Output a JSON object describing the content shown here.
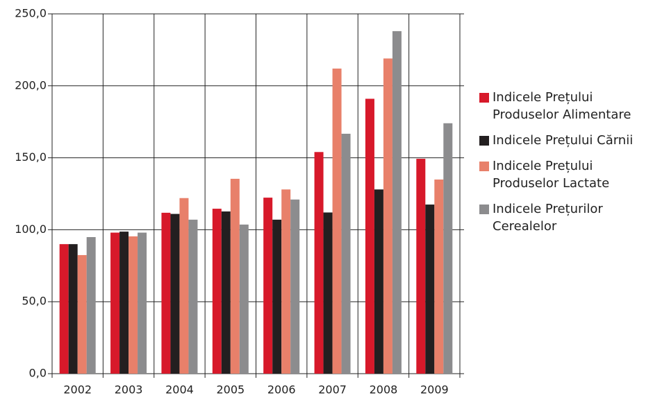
{
  "chart_data": {
    "type": "bar",
    "categories": [
      "2002",
      "2003",
      "2004",
      "2005",
      "2006",
      "2007",
      "2008",
      "2009"
    ],
    "series": [
      {
        "name": "Indicele Prețului Produselor Alimentare",
        "color": "#d7192a",
        "values": [
          90,
          98,
          111.8,
          114.6,
          122.3,
          154,
          191,
          149.3
        ]
      },
      {
        "name": "Indicele Prețului Cărnii",
        "color": "#231f20",
        "values": [
          90,
          98.7,
          111,
          112.7,
          107,
          112,
          128,
          117.5
        ]
      },
      {
        "name": "Indicele Prețului Produselor Lactate",
        "color": "#e8806a",
        "values": [
          82.4,
          95.4,
          122,
          135.4,
          128,
          212,
          219,
          134.9
        ]
      },
      {
        "name": "Indicele Prețurilor Cerealelor",
        "color": "#8c8c8e",
        "values": [
          94.9,
          98,
          107,
          103.6,
          121,
          166.7,
          238,
          174
        ]
      }
    ],
    "ylim": [
      0,
      250
    ],
    "yticks": [
      {
        "value": 0,
        "label": "0,0"
      },
      {
        "value": 50,
        "label": "50,0"
      },
      {
        "value": 100,
        "label": "100,0"
      },
      {
        "value": 150,
        "label": "150,0"
      },
      {
        "value": 200,
        "label": "200,0"
      },
      {
        "value": 250,
        "label": "250,0"
      }
    ],
    "grid": true,
    "legend": "right"
  }
}
